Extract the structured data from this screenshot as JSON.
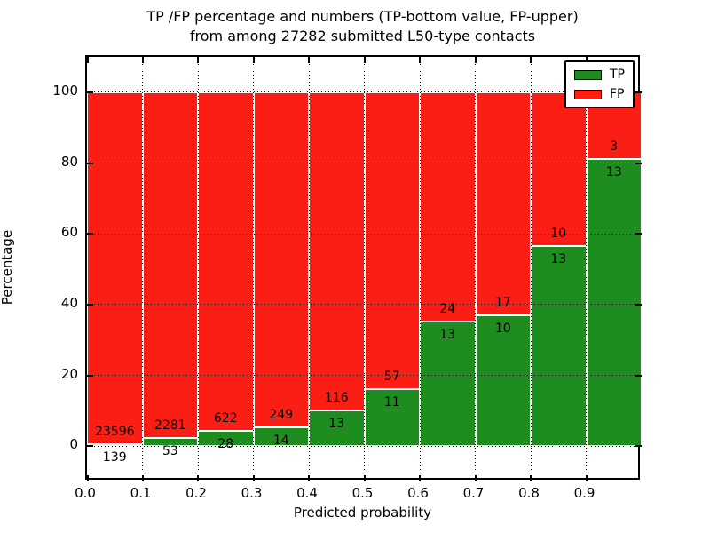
{
  "title": {
    "line1": "TP /FP percentage and numbers (TP-bottom value, FP-upper)",
    "line2": "from among 27282 submitted L50-type contacts"
  },
  "chart_data": {
    "type": "bar",
    "stacked": true,
    "normalized_to_percent": true,
    "title": "TP /FP percentage and numbers (TP-bottom value, FP-upper) from among 27282 submitted L50-type contacts",
    "xlabel": "Predicted probability",
    "ylabel": "Percentage",
    "categories": [
      "0.0-0.1",
      "0.1-0.2",
      "0.2-0.3",
      "0.3-0.4",
      "0.4-0.5",
      "0.5-0.6",
      "0.6-0.7",
      "0.7-0.8",
      "0.8-0.9",
      "0.9-1.0"
    ],
    "bin_start": [
      0.0,
      0.1,
      0.2,
      0.3,
      0.4,
      0.5,
      0.6,
      0.7,
      0.8,
      0.9
    ],
    "bin_width": 0.1,
    "series": [
      {
        "name": "TP",
        "color": "#1e8c1e",
        "counts": [
          139,
          53,
          28,
          14,
          13,
          11,
          13,
          10,
          13,
          13
        ]
      },
      {
        "name": "FP",
        "color": "#fb1e14",
        "counts": [
          23596,
          2281,
          622,
          249,
          116,
          57,
          24,
          17,
          10,
          3
        ]
      }
    ],
    "tp_percent": [
      0.59,
      2.27,
      4.31,
      5.32,
      10.08,
      16.18,
      35.14,
      37.04,
      56.52,
      81.25
    ],
    "total_contacts": 27282,
    "xlim": [
      0.0,
      1.0
    ],
    "ylim": [
      -10,
      110
    ],
    "x_ticks": [
      0.0,
      0.1,
      0.2,
      0.3,
      0.4,
      0.5,
      0.6,
      0.7,
      0.8,
      0.9
    ],
    "x_tick_labels": [
      "0.0",
      "0.1",
      "0.2",
      "0.3",
      "0.4",
      "0.5",
      "0.6",
      "0.7",
      "0.8",
      "0.9"
    ],
    "y_ticks": [
      0,
      20,
      40,
      60,
      80,
      100
    ],
    "y_tick_labels": [
      "0",
      "20",
      "40",
      "60",
      "80",
      "100"
    ],
    "grid": "dotted black, horizontal at y ticks and vertical at x ticks",
    "bar_edge_color": "#ffffff",
    "legend": {
      "position": "upper right",
      "items": [
        {
          "label": "TP",
          "color": "#1e8c1e"
        },
        {
          "label": "FP",
          "color": "#fb1e14"
        }
      ]
    }
  }
}
